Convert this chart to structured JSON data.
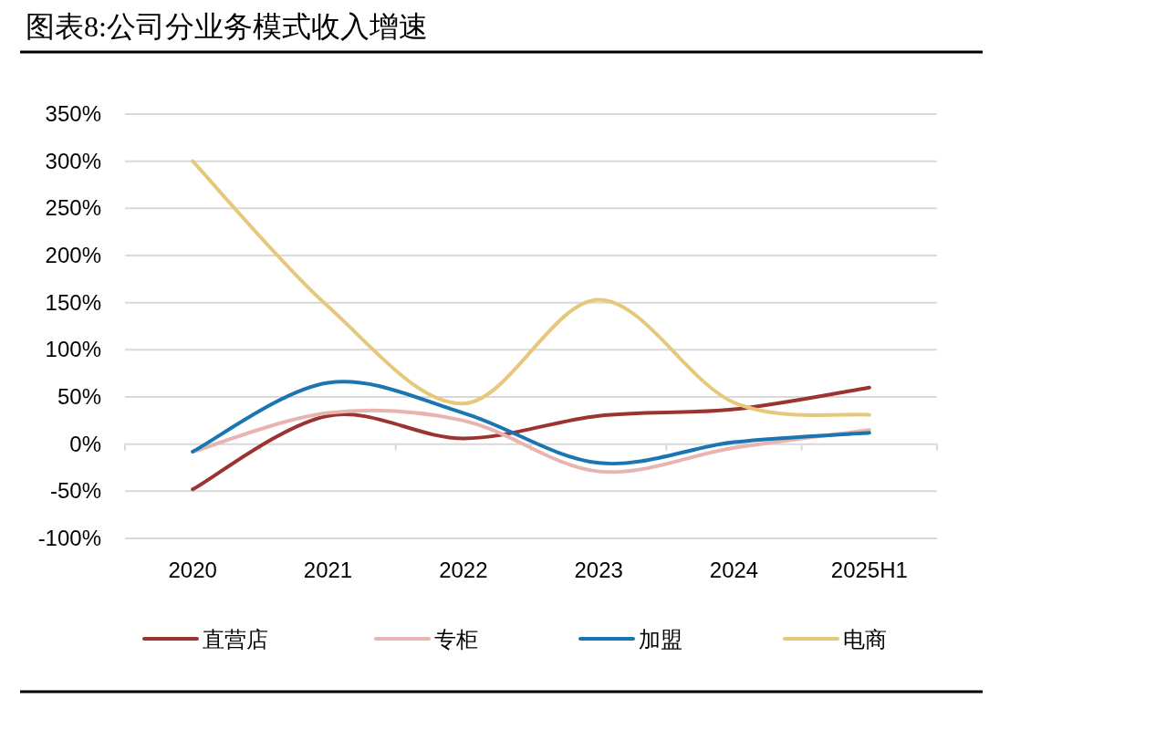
{
  "chart_data": {
    "type": "line",
    "title": "图表8:公司分业务模式收入增速",
    "categories": [
      "2020",
      "2021",
      "2022",
      "2023",
      "2024",
      "2025H1"
    ],
    "series": [
      {
        "name": "直营店",
        "color": "#9b3431",
        "values": [
          -48,
          30,
          6,
          30,
          37,
          60
        ]
      },
      {
        "name": "专柜",
        "color": "#e8b4b0",
        "values": [
          -8,
          33,
          25,
          -29,
          -4,
          15
        ]
      },
      {
        "name": "加盟",
        "color": "#1a75b0",
        "values": [
          -8,
          65,
          33,
          -20,
          2,
          12
        ]
      },
      {
        "name": "电商",
        "color": "#e6c87a",
        "values": [
          300,
          146,
          43,
          153,
          44,
          31
        ]
      }
    ],
    "ylim": [
      -100,
      350
    ],
    "yticks": [
      {
        "value": -100,
        "label": "-100%"
      },
      {
        "value": -50,
        "label": "-50%"
      },
      {
        "value": 0,
        "label": "0%"
      },
      {
        "value": 50,
        "label": "50%"
      },
      {
        "value": 100,
        "label": "100%"
      },
      {
        "value": 150,
        "label": "150%"
      },
      {
        "value": 200,
        "label": "200%"
      },
      {
        "value": 250,
        "label": "250%"
      },
      {
        "value": 300,
        "label": "300%"
      },
      {
        "value": 350,
        "label": "350%"
      }
    ],
    "grid": "y",
    "legend": "bottom",
    "marker": "none",
    "line_style": "solid"
  }
}
